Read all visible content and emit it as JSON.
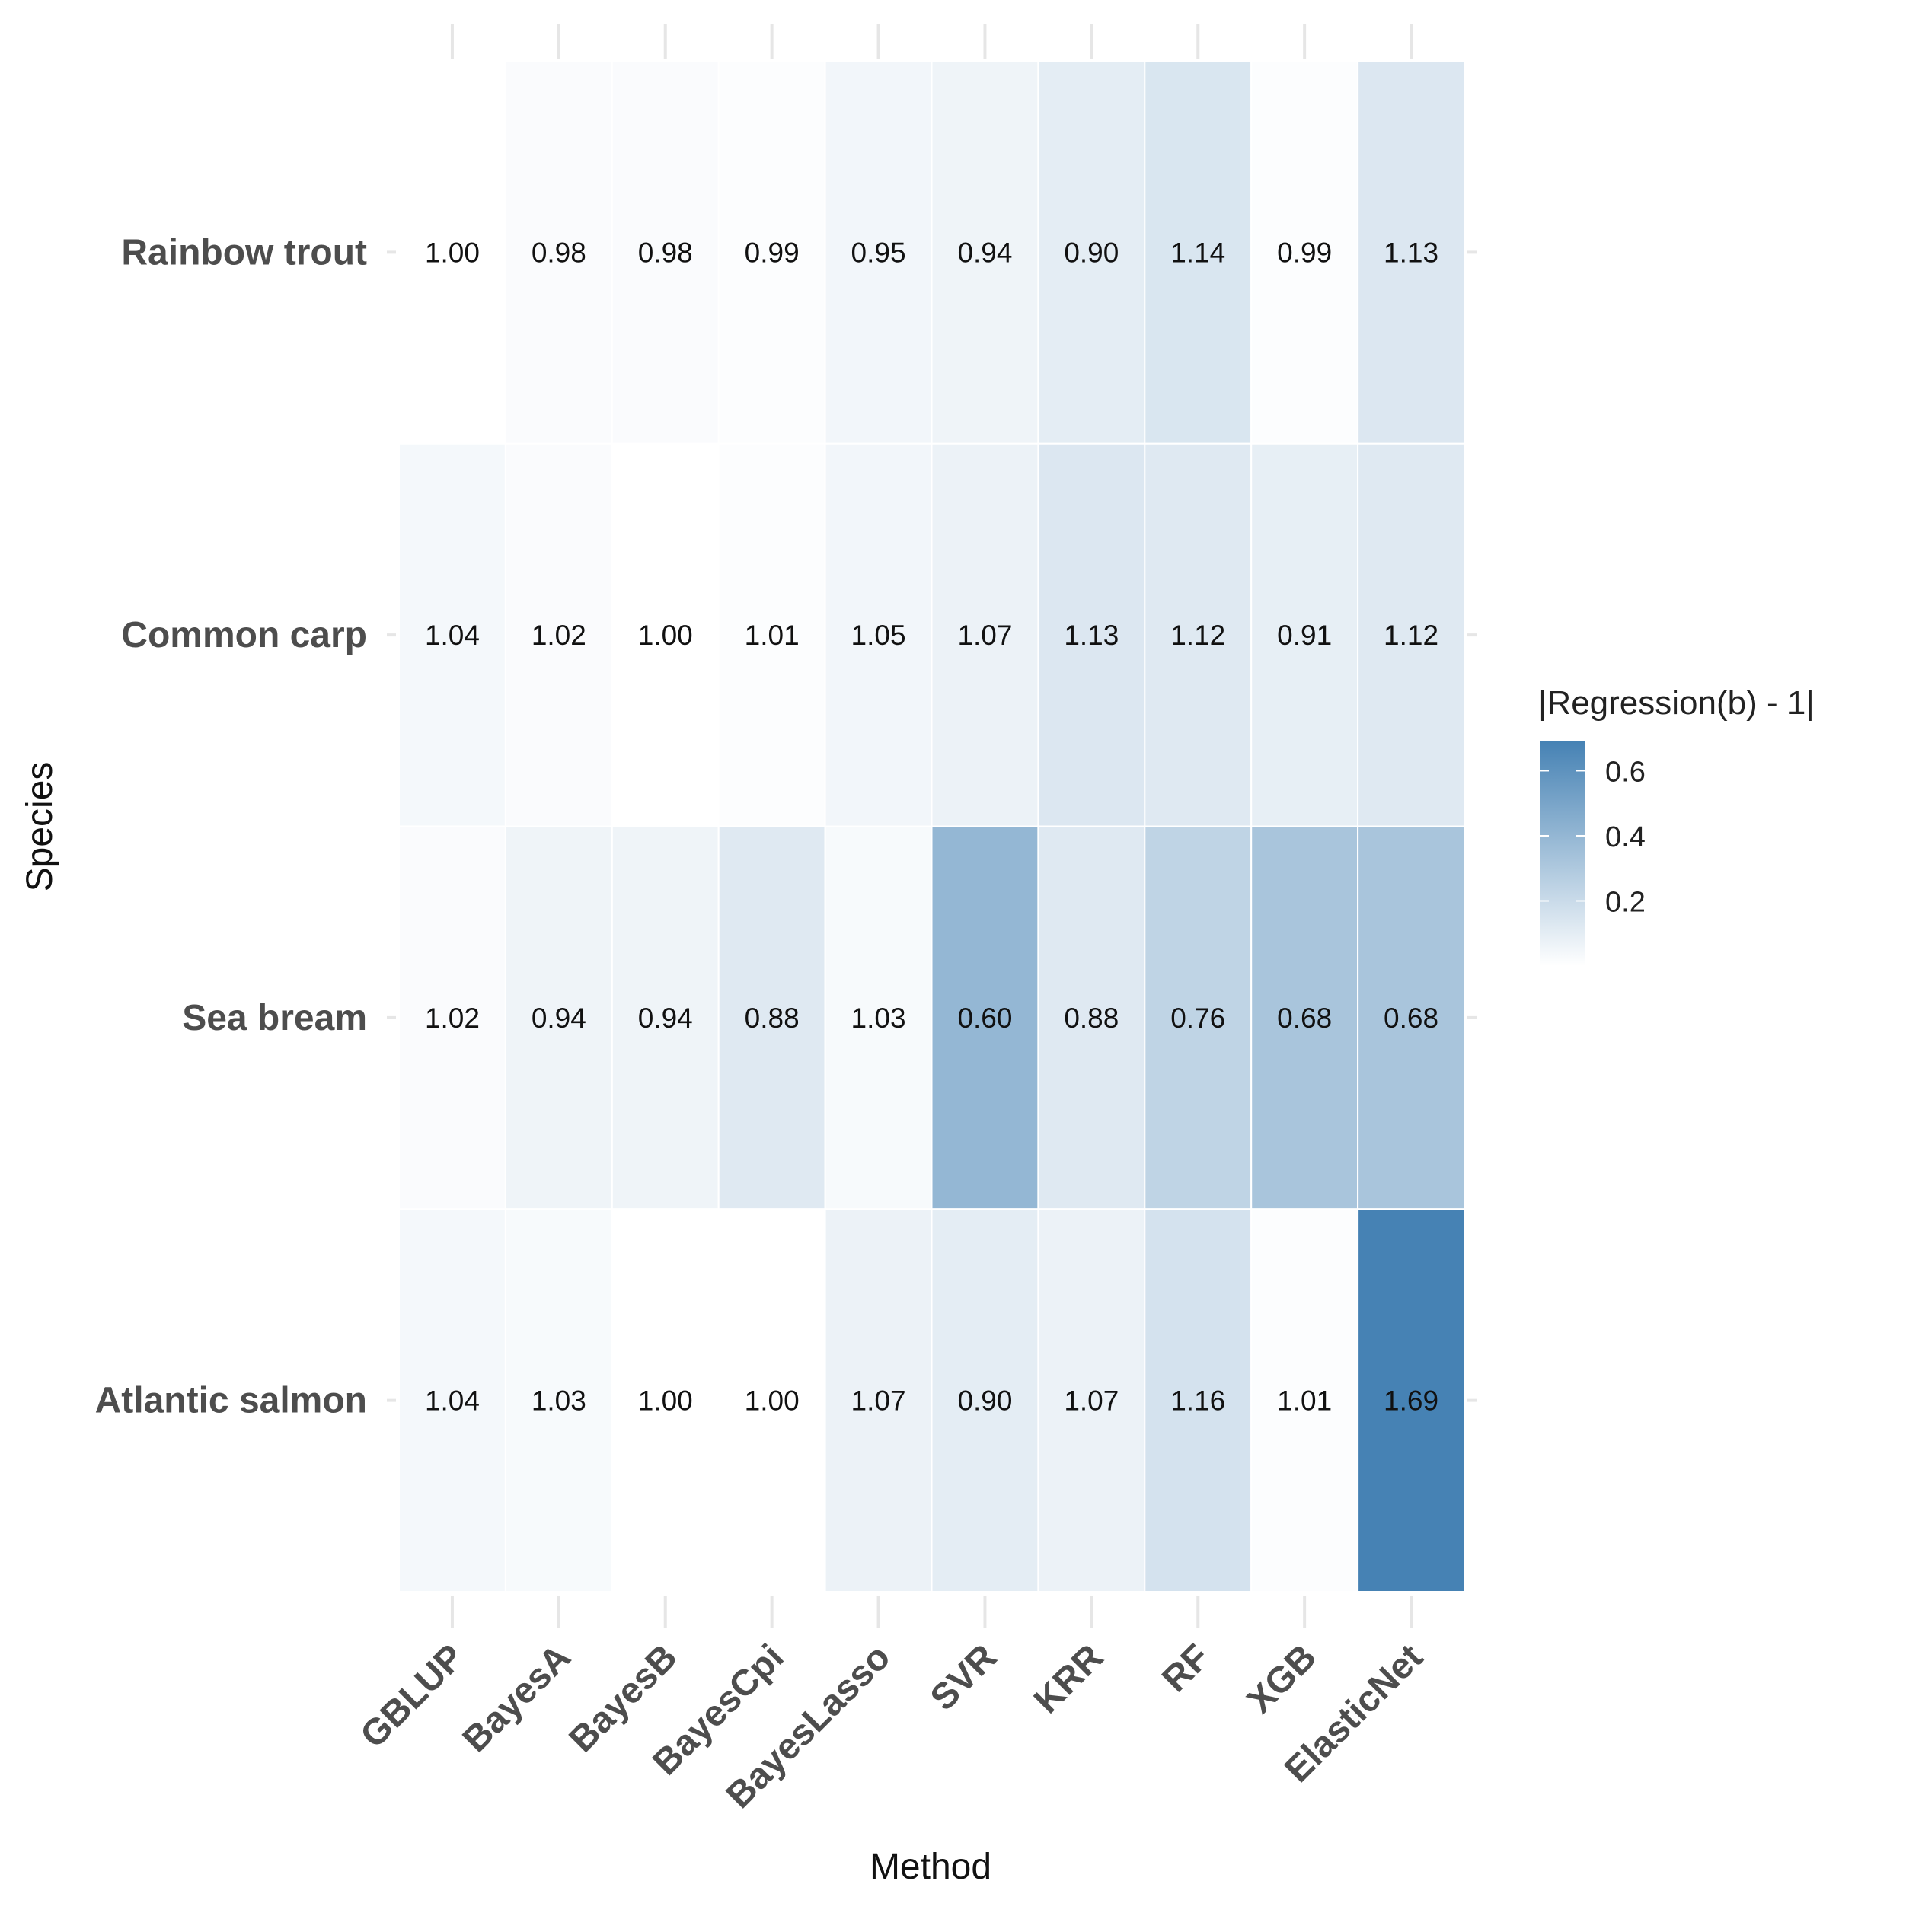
{
  "chart_data": {
    "type": "heatmap",
    "title": "",
    "xlabel": "Method",
    "ylabel": "Species",
    "x_categories": [
      "GBLUP",
      "BayesA",
      "BayesB",
      "BayesCpi",
      "BayesLasso",
      "SVR",
      "KRR",
      "RF",
      "XGB",
      "ElasticNet"
    ],
    "y_categories": [
      "Rainbow trout",
      "Common carp",
      "Sea bream",
      "Atlantic salmon"
    ],
    "values": [
      [
        1.0,
        0.98,
        0.98,
        0.99,
        0.95,
        0.94,
        0.9,
        1.14,
        0.99,
        1.13
      ],
      [
        1.04,
        1.02,
        1.0,
        1.01,
        1.05,
        1.07,
        1.13,
        1.12,
        0.91,
        1.12
      ],
      [
        1.02,
        0.94,
        0.94,
        0.88,
        1.03,
        0.6,
        0.88,
        0.76,
        0.68,
        0.68
      ],
      [
        1.04,
        1.03,
        1.0,
        1.0,
        1.07,
        0.9,
        1.07,
        1.16,
        1.01,
        1.69
      ]
    ],
    "fill_variable": "|Regression(b) - 1|",
    "legend": {
      "title": "|Regression(b) - 1|",
      "ticks": [
        "0.2",
        "0.4",
        "0.6"
      ],
      "range": [
        0.0,
        0.69
      ],
      "low_color": "#ffffff",
      "high_color": "#4682b4",
      "placement": "right"
    }
  }
}
